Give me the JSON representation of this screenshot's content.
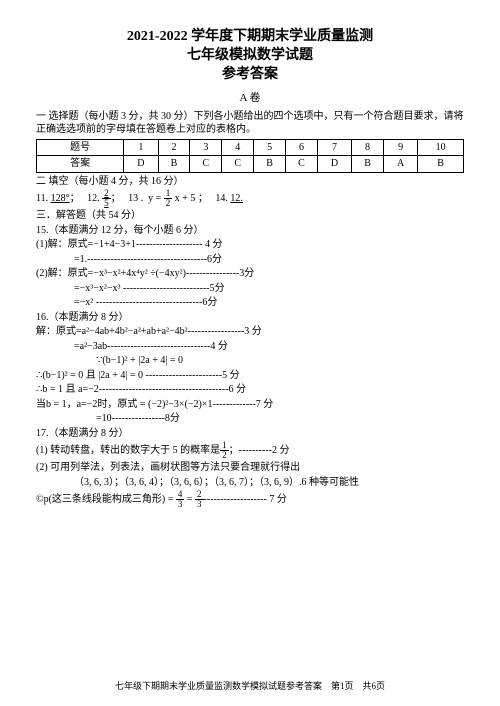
{
  "header": {
    "t1": "2021-2022 学年度下期期末学业质量监测",
    "t2": "七年级模拟数学试题",
    "t3": "参考答案",
    "vol": "A 卷"
  },
  "sec1": {
    "label": "一 选择题（每小题 3 分，共 30 分）下列各小题给出的四个选项中，只有一个符合题目要求，请将正确选选项前的字母填在答题卷上对应的表格内。",
    "head": [
      "题号",
      "1",
      "2",
      "3",
      "4",
      "5",
      "6",
      "7",
      "8",
      "9",
      "10"
    ],
    "row": [
      "答案",
      "D",
      "B",
      "C",
      "C",
      "B",
      "C",
      "D",
      "B",
      "A",
      "B"
    ]
  },
  "sec2": {
    "label": "二 填空（每小题 4 分，共 16 分）",
    "q11a": "11.",
    "q11b": "128°",
    "q11c": "；",
    "q12a": "12.",
    "q12c": "；",
    "q13a": "13 .",
    "q13b": "y = ",
    "q13e": " x + 5 ；",
    "q14a": "14.",
    "q14b": "12."
  },
  "frac25": {
    "n": "2",
    "d": "5"
  },
  "frac12": {
    "n": "1",
    "d": "2"
  },
  "frac43": {
    "n": "4",
    "d": "3"
  },
  "frac23": {
    "n": "2",
    "d": "3"
  },
  "sec3": {
    "label": "三．解答题（共 54 分）"
  },
  "q15": {
    "a": "15.（本题满分 12 分，每个小题 6 分）",
    "b": "(1)解：原式=−1+4−3+1-------------------- 4 分",
    "c": "=1.------------------------------------6分",
    "d": "(2)解：原式=−x³−x²+4x⁴y² ÷(−4xy²)----------------3分",
    "e": "=−x³−x²−x³ --------------------------5分",
    "f": "=−x² --------------------------------6分"
  },
  "q16": {
    "a": "16.（本题满分 8 分）",
    "b": "解：原式=a²−4ab+4b²−a²+ab+a²−4b²-----------------3 分",
    "c": "=a²−3ab-------------------------------4 分",
    "d": "∵(b−1)² + |2a + 4| = 0",
    "e": "∴(b−1)² = 0 且 |2a + 4| = 0 -----------------------5 分",
    "f": "∴b = 1 且 a=−2---------------------------------------6 分",
    "g": "当b = 1，a=−2时，原式 = (−2)²−3×(−2)×1-------------7 分",
    "h": "=10----------------8分"
  },
  "q17": {
    "a": "17.（本题满分 8 分）",
    "b1": "(1) 转动转盘，转出的数字大于 5 的概率是",
    "b2": "；----------2 分",
    "c": "(2) 可用列举法，列表法，画树状图等方法只要合理就行得出",
    "d": "（3, 6, 3）；（3, 6, 4）；（3, 6, 6）；（3, 6, 7）；（3, 6, 9）.6 种等可能性",
    "e1": "©p(这三条线段能构成三角形) = ",
    "e2": " = ",
    "e3": "------------------- 7 分"
  },
  "footer": "七年级下期期末学业质量监测数学模拟试题参考答案　第1页　共6页"
}
